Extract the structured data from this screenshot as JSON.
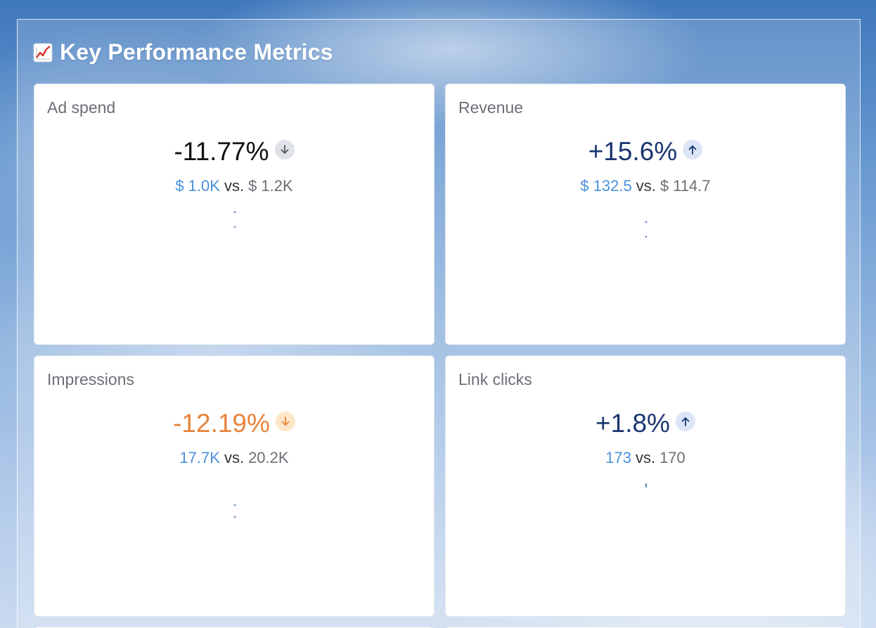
{
  "dashboard": {
    "title": "Key Performance Metrics",
    "title_icon": "chart-increasing-icon"
  },
  "metrics": [
    {
      "label": "Ad spend",
      "change": "-11.77%",
      "direction": "down",
      "change_color": "#111111",
      "arrow_bg": "#dfe3e8",
      "arrow_color": "#555a60",
      "current": "$ 1.0K",
      "vs": "vs.",
      "previous": "$ 1.2K"
    },
    {
      "label": "Revenue",
      "change": "+15.6%",
      "direction": "up",
      "change_color": "#1a3570",
      "arrow_bg": "#dce6f6",
      "arrow_color": "#1a3570",
      "current": "$ 132.5",
      "vs": "vs.",
      "previous": "$ 114.7"
    },
    {
      "label": "Impressions",
      "change": "-12.19%",
      "direction": "down",
      "change_color": "#e8833a",
      "arrow_bg": "#fde6c8",
      "arrow_color": "#e8833a",
      "current": "17.7K",
      "vs": "vs.",
      "previous": "20.2K"
    },
    {
      "label": "Link clicks",
      "change": "+1.8%",
      "direction": "up",
      "change_color": "#1a3570",
      "arrow_bg": "#dce6f6",
      "arrow_color": "#1a3570",
      "current": "173",
      "vs": "vs.",
      "previous": "170"
    }
  ],
  "colors": {
    "accent_blue": "#4a90d9",
    "muted_text": "#6b6f75"
  }
}
